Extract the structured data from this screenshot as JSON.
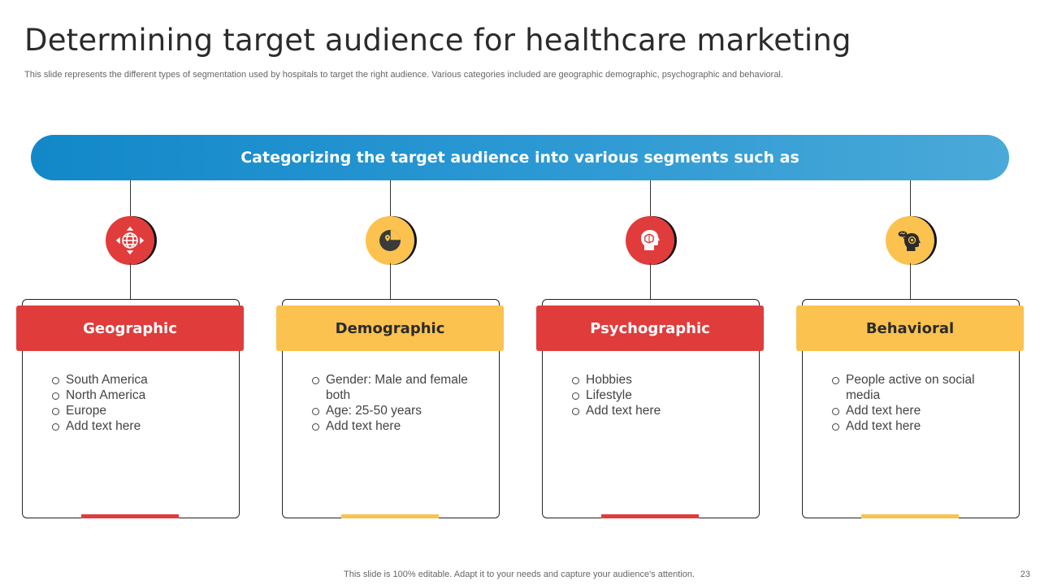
{
  "slide": {
    "title": "Determining target audience for healthcare marketing",
    "subtitle": "This slide represents the different types of segmentation used by hospitals to target the right audience. Various categories included are geographic demographic, psychographic and behavioral.",
    "banner": "Categorizing the target audience into various segments such as",
    "footer": "This slide is 100% editable. Adapt it to your needs and capture your audience's attention.",
    "page_number": "23"
  },
  "colors": {
    "red": "#e03c3c",
    "yellow": "#fbc24f",
    "banner_start": "#1288c9",
    "banner_end": "#4aa9d8"
  },
  "segments": [
    {
      "title": "Geographic",
      "icon": "globe-icon",
      "color": "red",
      "items": [
        "South America",
        "North America",
        "Europe",
        "Add text here"
      ]
    },
    {
      "title": "Demographic",
      "icon": "pie-chart-location-icon",
      "color": "yellow",
      "items": [
        "Gender: Male and female both",
        "Age: 25-50 years",
        "Add text here"
      ]
    },
    {
      "title": "Psychographic",
      "icon": "brain-head-icon",
      "color": "red",
      "items": [
        "Hobbies",
        "Lifestyle",
        "Add text here"
      ]
    },
    {
      "title": "Behavioral",
      "icon": "head-thoughts-icon",
      "color": "yellow",
      "items": [
        "People active on social media",
        "Add text here",
        "Add text here"
      ]
    }
  ]
}
